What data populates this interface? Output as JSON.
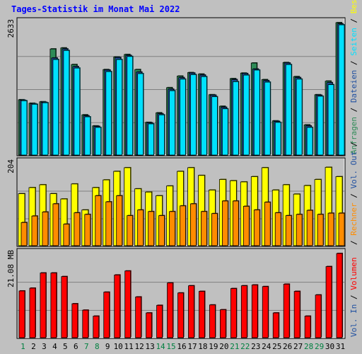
{
  "title": "Tages-Statistik im Monat Mai 2022",
  "colors": {
    "background": "#C0C0C0",
    "title": "#0000FF",
    "hits": "#2E8B57",
    "files": "#2050A0",
    "pages": "#00E0FF",
    "visits": "#FFFF00",
    "sites": "#FF8C00",
    "kbytes": "#FF0000",
    "weekday": "#000000",
    "weekend": "#008040",
    "grid": "#808080"
  },
  "chart_data": [
    {
      "type": "bar",
      "name": "Anfragen / Dateien / Seiten",
      "categories": [
        "1",
        "2",
        "3",
        "4",
        "5",
        "6",
        "7",
        "8",
        "9",
        "10",
        "11",
        "12",
        "13",
        "14",
        "15",
        "16",
        "17",
        "18",
        "19",
        "20",
        "21",
        "22",
        "23",
        "24",
        "25",
        "26",
        "27",
        "28",
        "29",
        "30",
        "31"
      ],
      "weekend_days": [
        "1",
        "7",
        "8",
        "14",
        "15",
        "21",
        "22",
        "28",
        "29"
      ],
      "ymax_label": "2633",
      "ylim": [
        0,
        2633
      ],
      "series": [
        {
          "name": "Anfragen",
          "color_key": "hits",
          "values": [
            1100,
            1030,
            1060,
            2110,
            2130,
            1800,
            800,
            580,
            1700,
            1950,
            2000,
            1700,
            650,
            840,
            1340,
            1570,
            1640,
            1610,
            1200,
            970,
            1520,
            1630,
            1830,
            1500,
            680,
            1840,
            1560,
            600,
            1200,
            1470,
            2633
          ]
        },
        {
          "name": "Dateien",
          "color_key": "files",
          "values": [
            1090,
            1020,
            1050,
            1930,
            2110,
            1760,
            780,
            570,
            1690,
            1940,
            1980,
            1650,
            640,
            820,
            1310,
            1540,
            1630,
            1590,
            1190,
            950,
            1500,
            1620,
            1710,
            1480,
            670,
            1830,
            1540,
            580,
            1190,
            1440,
            2610
          ]
        },
        {
          "name": "Seiten",
          "color_key": "pages",
          "values": [
            1080,
            1010,
            1040,
            1900,
            2080,
            1730,
            760,
            550,
            1660,
            1900,
            1960,
            1620,
            620,
            800,
            1280,
            1510,
            1600,
            1560,
            1160,
            920,
            1460,
            1590,
            1690,
            1450,
            650,
            1800,
            1510,
            550,
            1170,
            1400,
            2590
          ]
        }
      ]
    },
    {
      "type": "bar",
      "name": "Besuche / Rechner",
      "categories": [
        "1",
        "2",
        "3",
        "4",
        "5",
        "6",
        "7",
        "8",
        "9",
        "10",
        "11",
        "12",
        "13",
        "14",
        "15",
        "16",
        "17",
        "18",
        "19",
        "20",
        "21",
        "22",
        "23",
        "24",
        "25",
        "26",
        "27",
        "28",
        "29",
        "30",
        "31"
      ],
      "ymax_label": "204",
      "ylim": [
        0,
        204
      ],
      "series": [
        {
          "name": "Besuche",
          "color_key": "visits",
          "values": [
            128,
            143,
            150,
            128,
            115,
            152,
            88,
            143,
            162,
            183,
            192,
            140,
            132,
            123,
            147,
            183,
            192,
            173,
            137,
            163,
            160,
            157,
            170,
            192,
            137,
            150,
            127,
            148,
            163,
            193,
            170
          ]
        },
        {
          "name": "Rechner",
          "color_key": "sites",
          "values": [
            57,
            73,
            83,
            103,
            53,
            81,
            77,
            123,
            108,
            123,
            74,
            88,
            84,
            74,
            84,
            98,
            103,
            84,
            79,
            110,
            110,
            97,
            88,
            107,
            81,
            74,
            77,
            87,
            77,
            80,
            80
          ]
        }
      ]
    },
    {
      "type": "bar",
      "name": "Volumen",
      "categories": [
        "1",
        "2",
        "3",
        "4",
        "5",
        "6",
        "7",
        "8",
        "9",
        "10",
        "11",
        "12",
        "13",
        "14",
        "15",
        "16",
        "17",
        "18",
        "19",
        "20",
        "21",
        "22",
        "23",
        "24",
        "25",
        "26",
        "27",
        "28",
        "29",
        "30",
        "31"
      ],
      "ymax_label": "21.08 MB",
      "ylim": [
        0,
        21.08
      ],
      "series": [
        {
          "name": "Volumen",
          "color_key": "kbytes",
          "values": [
            11.7,
            12.4,
            16.2,
            16.2,
            15.3,
            8.5,
            6.9,
            5.4,
            11.4,
            15.7,
            16.7,
            10.2,
            6.2,
            8.1,
            13.7,
            11.2,
            13.0,
            11.6,
            8.2,
            7.0,
            12.3,
            13.0,
            13.2,
            12.8,
            6.2,
            13.4,
            11.6,
            5.4,
            10.7,
            17.8,
            21.08
          ]
        }
      ]
    }
  ],
  "right_labels": {
    "top": [
      {
        "text": "Anfragen",
        "color_key": "hits"
      },
      {
        "text": " / ",
        "color_key": "weekday"
      },
      {
        "text": "Dateien",
        "color_key": "files"
      },
      {
        "text": " / ",
        "color_key": "weekday"
      },
      {
        "text": "Seiten",
        "color_key": "pages"
      },
      {
        "text": " / ",
        "color_key": "weekday"
      },
      {
        "text": "Besuche",
        "color_key": "visits"
      }
    ],
    "mid": [
      {
        "text": " / ",
        "color_key": "weekday"
      },
      {
        "text": "Rechner",
        "color_key": "sites"
      },
      {
        "text": " / ",
        "color_key": "weekday"
      },
      {
        "text": "Vol. Out",
        "color_key": "files"
      },
      {
        "text": " / ",
        "color_key": "weekday"
      }
    ],
    "bottom": [
      {
        "text": "Vol. In",
        "color_key": "files"
      },
      {
        "text": " / ",
        "color_key": "weekday"
      },
      {
        "text": "Volumen",
        "color_key": "kbytes"
      }
    ]
  }
}
